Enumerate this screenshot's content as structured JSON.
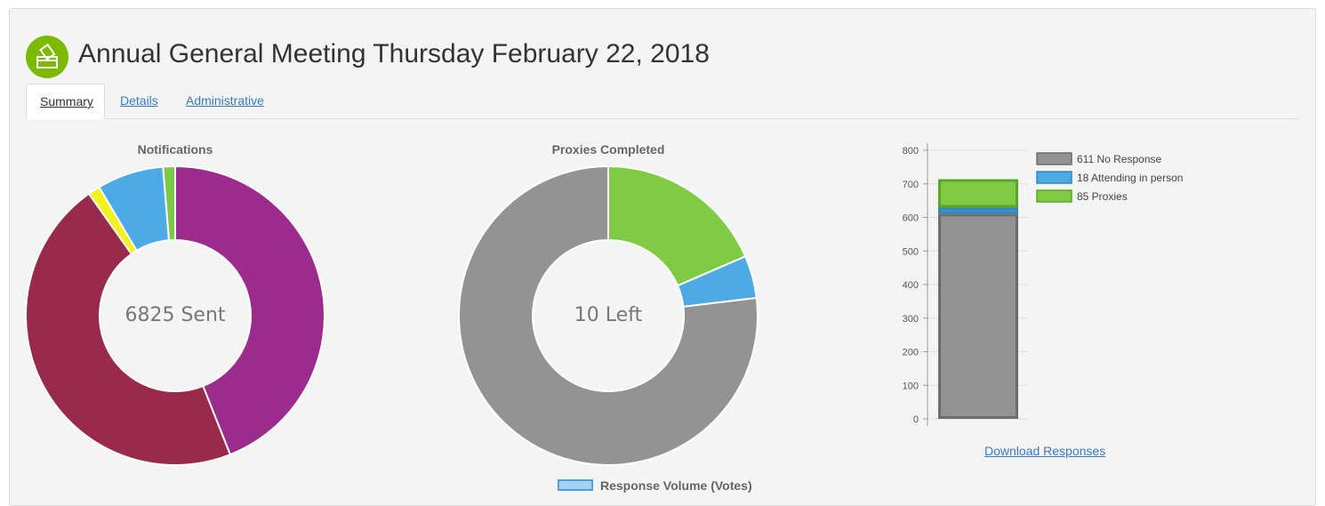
{
  "header": {
    "title": "Annual General Meeting Thursday February 22, 2018",
    "icon": "ballot-box-icon",
    "icon_color": "#7cba00"
  },
  "tabs": [
    {
      "label": "Summary",
      "active": true
    },
    {
      "label": "Details",
      "active": false
    },
    {
      "label": "Administrative",
      "active": false
    }
  ],
  "notifications": {
    "title": "Notifications",
    "center_label": "6825 Sent"
  },
  "proxies": {
    "title": "Proxies Completed",
    "center_label": "10 Left"
  },
  "bottom_legend": {
    "label": "Response Volume (Votes)"
  },
  "download_link": "Download Responses",
  "chart_data": [
    {
      "type": "pie",
      "title": "Notifications",
      "donut": true,
      "slices": [
        {
          "value": 44.0,
          "color": "#9b2c8e"
        },
        {
          "value": 46.2,
          "color": "#992a4c"
        },
        {
          "value": 1.3,
          "color": "#f4f11c"
        },
        {
          "value": 7.2,
          "color": "#4eaae4"
        },
        {
          "value": 1.3,
          "color": "#7cc945"
        }
      ],
      "start_angle_deg": 0
    },
    {
      "type": "pie",
      "title": "Proxies Completed",
      "donut": true,
      "slices": [
        {
          "value": 18.5,
          "color": "#7fcc44"
        },
        {
          "value": 4.6,
          "color": "#4eaae4"
        },
        {
          "value": 76.9,
          "color": "#939393"
        }
      ],
      "start_angle_deg": 0
    },
    {
      "type": "bar",
      "stacked": true,
      "yticks": [
        0,
        100,
        200,
        300,
        400,
        500,
        600,
        700,
        800
      ],
      "ylim": [
        0,
        800
      ],
      "grid": true,
      "legend_position": "right",
      "series": [
        {
          "name": "No Response",
          "value": 611,
          "color": "#939393",
          "border": "#6d6d6d"
        },
        {
          "name": "Attending in person",
          "value": 18,
          "color": "#4eaae4",
          "border": "#2f86c4"
        },
        {
          "name": "Proxies",
          "value": 85,
          "color": "#7fcc44",
          "border": "#5aa52a"
        }
      ]
    }
  ]
}
